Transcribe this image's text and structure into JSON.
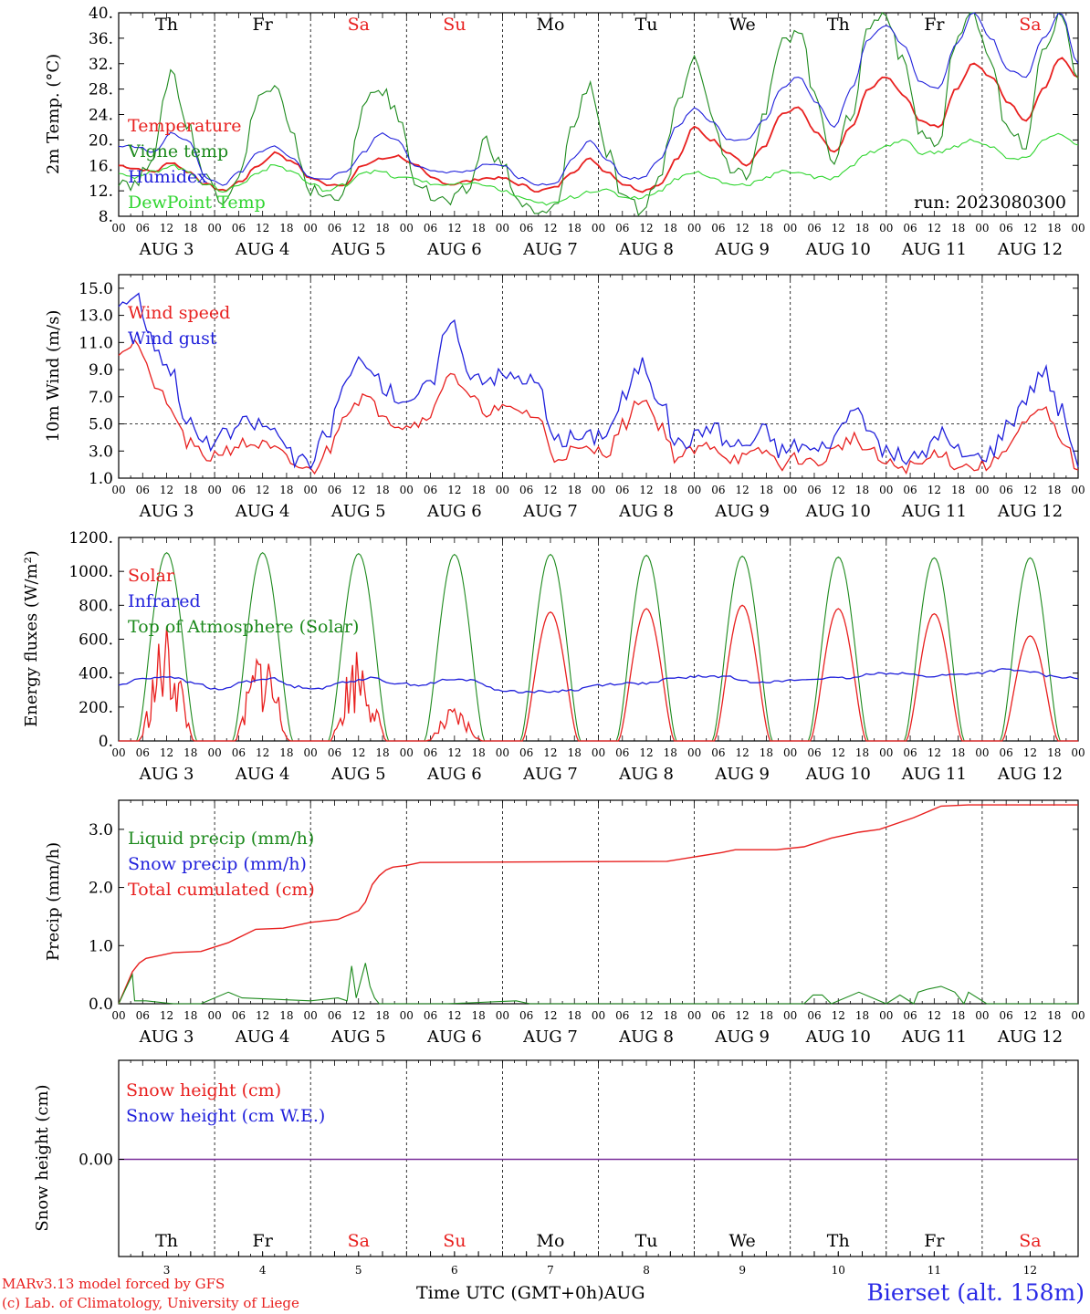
{
  "colors": {
    "red": "#e8201f",
    "blue": "#1f1fdb",
    "green": "#1d8a1d",
    "lightgreen": "#2fd52f",
    "purple": "#7a2f9a",
    "frame": "#000000"
  },
  "days": {
    "weekdays_top": [
      "Th",
      "Fr",
      "Sa",
      "Su",
      "Mo",
      "Tu",
      "We",
      "Th",
      "Fr",
      "Sa"
    ],
    "weekend_flags": [
      false,
      false,
      true,
      true,
      false,
      false,
      false,
      false,
      false,
      true
    ],
    "dates": [
      "3",
      "4",
      "5",
      "6",
      "7",
      "8",
      "9",
      "10",
      "11",
      "12"
    ],
    "month": "AUG",
    "hour_ticks": [
      "00",
      "06",
      "12",
      "18"
    ],
    "last_tick": "00"
  },
  "chart_data": [
    {
      "type": "line",
      "ylabel": "2m Temp. (°C)",
      "ylim": [
        8,
        40
      ],
      "yticks": [
        "8.",
        "12.",
        "16.",
        "20.",
        "24.",
        "28.",
        "32.",
        "36.",
        "40."
      ],
      "annotation": "run: 2023080300",
      "legend": [
        "Temperature",
        "Vigne temp",
        "Humidex",
        "DewPoint Temp"
      ],
      "series": [
        {
          "name": "Temperature",
          "color": "red",
          "values": [
            16,
            15.5,
            15,
            16.5,
            15,
            13,
            12,
            13.5,
            16,
            18,
            16.5,
            14,
            13,
            13,
            16,
            17,
            17.5,
            16,
            14,
            13,
            13.5,
            14,
            14,
            13,
            12,
            12.5,
            15,
            17,
            15,
            13,
            12,
            13,
            17,
            22,
            20,
            18,
            16,
            19,
            24,
            25,
            21,
            18,
            22,
            28,
            30,
            27,
            23,
            22,
            28,
            32,
            30,
            26,
            23,
            28,
            33,
            30
          ]
        },
        {
          "name": "Vigne temp",
          "color": "green",
          "values": [
            14,
            13,
            18,
            31,
            22,
            14,
            11,
            15,
            27,
            28,
            20,
            12,
            11,
            12,
            25,
            28,
            24,
            14,
            11,
            10,
            12,
            20,
            16,
            10,
            8,
            9,
            22,
            29,
            18,
            10,
            9,
            14,
            26,
            34,
            24,
            16,
            15,
            24,
            35,
            38,
            26,
            17,
            24,
            38,
            40,
            32,
            21,
            19,
            36,
            40,
            33,
            21,
            19,
            34,
            40,
            30
          ]
        },
        {
          "name": "Humidex",
          "color": "blue",
          "values": [
            19,
            19,
            18,
            21,
            20,
            14,
            13,
            15,
            18,
            19,
            17,
            14,
            14,
            15,
            18,
            21,
            20,
            16,
            15,
            15,
            15,
            16,
            16,
            14,
            13,
            13,
            17,
            20,
            17,
            14,
            14,
            17,
            22,
            25,
            23,
            20,
            20,
            23,
            28,
            30,
            26,
            22,
            28,
            36,
            38,
            35,
            29,
            28,
            35,
            40,
            36,
            31,
            30,
            36,
            40,
            32
          ]
        },
        {
          "name": "DewPoint Temp",
          "color": "lightgreen",
          "values": [
            15,
            14,
            15,
            16,
            15,
            13,
            12,
            13,
            15,
            16,
            15,
            13,
            12,
            13,
            15,
            15,
            14,
            14,
            13,
            13,
            13,
            13,
            12,
            11,
            10,
            10,
            11,
            12,
            12,
            11,
            11,
            12,
            14,
            15,
            14,
            13,
            13,
            14,
            15,
            15,
            14,
            14,
            16,
            18,
            19,
            20,
            18,
            18,
            19,
            20,
            19,
            17,
            17,
            20,
            21,
            19
          ]
        }
      ]
    },
    {
      "type": "line",
      "ylabel": "10m Wind (m/s)",
      "ylim": [
        1,
        16
      ],
      "yticks": [
        "1.0",
        "3.0",
        "5.0",
        "7.0",
        "9.0",
        "11.0",
        "13.0",
        "15.0"
      ],
      "reference_line": 5,
      "legend": [
        "Wind speed",
        "Wind gust"
      ],
      "series": [
        {
          "name": "Wind speed",
          "color": "red",
          "values": [
            10.5,
            11,
            8,
            6,
            3.5,
            2.5,
            3,
            3.5,
            3.5,
            3,
            2,
            1.5,
            3,
            6,
            7,
            6,
            5,
            5,
            6,
            9,
            7,
            6,
            6,
            6,
            5.5,
            2.5,
            3,
            3,
            3,
            5,
            7,
            5,
            2.5,
            3,
            3.5,
            2.5,
            2.5,
            3,
            2,
            2.5,
            2,
            3,
            4,
            3,
            2,
            1.8,
            2,
            3,
            2,
            1.8,
            2,
            3.5,
            5,
            6,
            4,
            1.8
          ]
        },
        {
          "name": "Wind gust",
          "color": "blue",
          "values": [
            14,
            14.5,
            11,
            9,
            5,
            3.5,
            4,
            5,
            5,
            4.5,
            2.5,
            2,
            4.5,
            8,
            10,
            8,
            7,
            7,
            8,
            13,
            9,
            8.5,
            8.5,
            8.5,
            8,
            3.5,
            4,
            4,
            4.5,
            7,
            9.5,
            7,
            3.5,
            4,
            5,
            3.5,
            3.5,
            4.5,
            3,
            3.5,
            3,
            4,
            6,
            4.5,
            3,
            2.5,
            2.5,
            4.5,
            3,
            2.5,
            3,
            5,
            7,
            9,
            6,
            2.5
          ]
        }
      ]
    },
    {
      "type": "line",
      "ylabel": "Energy fluxes (W/m²)",
      "ylim": [
        0,
        1200
      ],
      "yticks": [
        "0.",
        "200.",
        "400.",
        "600.",
        "800.",
        "1000.",
        "1200."
      ],
      "legend": [
        "Solar",
        "Infrared",
        "Top of Atmosphere (Solar)"
      ],
      "series": [
        {
          "name": "Top of Atmosphere (Solar)",
          "color": "green",
          "day_peak": [
            1110,
            1110,
            1105,
            1100,
            1100,
            1095,
            1090,
            1085,
            1080,
            1080
          ],
          "rise_hour": 4.5,
          "set_hour": 19.5
        },
        {
          "name": "Solar",
          "color": "red",
          "day_peak": [
            700,
            600,
            600,
            200,
            760,
            780,
            800,
            780,
            750,
            620
          ],
          "rise_hour": 5,
          "set_hour": 19
        },
        {
          "name": "Infrared",
          "color": "blue",
          "values": [
            330,
            370,
            380,
            340,
            300,
            350,
            370,
            320,
            310,
            350,
            370,
            340,
            330,
            360,
            360,
            300,
            290,
            290,
            300,
            330,
            340,
            340,
            370,
            380,
            380,
            350,
            350,
            360,
            370,
            370,
            400,
            400,
            380,
            390,
            400,
            420,
            410,
            380,
            370
          ]
        }
      ]
    },
    {
      "type": "line",
      "ylabel": "Precip (mm/h)",
      "ylim": [
        0,
        3.5
      ],
      "yticks": [
        "0.0",
        "1.0",
        "2.0",
        "3.0"
      ],
      "legend": [
        "Liquid precip (mm/h)",
        "Snow precip (mm/h)",
        "Total cumulated (cm)"
      ],
      "series": [
        {
          "name": "Total cumulated (cm)",
          "color": "red",
          "x_hours": [
            0,
            6,
            9,
            12,
            24,
            36,
            48,
            60,
            72,
            84,
            96,
            105,
            108,
            111,
            114,
            117,
            120,
            126,
            132,
            240,
            264,
            270,
            288,
            300,
            312,
            318,
            324,
            333,
            348,
            360,
            372,
            378,
            384,
            396,
            408,
            420
          ],
          "values": [
            0,
            0.55,
            0.7,
            0.78,
            0.88,
            0.9,
            1.05,
            1.28,
            1.3,
            1.4,
            1.45,
            1.6,
            1.75,
            2.05,
            2.2,
            2.3,
            2.35,
            2.38,
            2.43,
            2.45,
            2.6,
            2.65,
            2.65,
            2.7,
            2.85,
            2.9,
            2.95,
            3.0,
            3.2,
            3.4,
            3.42,
            3.42,
            3.42,
            3.42,
            3.42,
            3.42
          ]
        },
        {
          "name": "Liquid precip (mm/h)",
          "color": "green",
          "x_hours": [
            0,
            6,
            7,
            12,
            24,
            36,
            48,
            54,
            84,
            96,
            100,
            102,
            104,
            108,
            110,
            112,
            114,
            120,
            144,
            174,
            180,
            186,
            216,
            300,
            304,
            308,
            312,
            324,
            330,
            336,
            342,
            348,
            350,
            354,
            360,
            366,
            370,
            372,
            380,
            396,
            420
          ],
          "values": [
            0,
            0.5,
            0.05,
            0.05,
            0,
            0,
            0.2,
            0.1,
            0.05,
            0.1,
            0.05,
            0.65,
            0.1,
            0.7,
            0.3,
            0.1,
            0,
            0,
            0,
            0.05,
            0,
            0,
            0,
            0,
            0.15,
            0.15,
            0,
            0.2,
            0.1,
            0,
            0.15,
            0,
            0.2,
            0.25,
            0.3,
            0.2,
            0,
            0.2,
            0,
            0,
            0
          ]
        },
        {
          "name": "Snow precip (mm/h)",
          "color": "blue",
          "x_hours": [
            0,
            420
          ],
          "values": [
            0,
            0
          ]
        }
      ]
    },
    {
      "type": "line",
      "ylabel": "Snow height (cm)",
      "yticks": [
        "0.00"
      ],
      "legend": [
        "Snow height (cm)",
        "Snow height (cm W.E.)"
      ],
      "series": [
        {
          "name": "Snow height (cm)",
          "color": "purple",
          "x_hours": [
            0,
            420
          ],
          "values": [
            0,
            0
          ]
        }
      ]
    }
  ],
  "footer": {
    "xlabel": "Time UTC (GMT+0h)",
    "month": "AUG",
    "credit_line1": "MARv3.13 model forced by GFS",
    "credit_line2": "(c) Lab. of Climatology, University of Liege",
    "station": "Bierset (alt. 158m)"
  }
}
